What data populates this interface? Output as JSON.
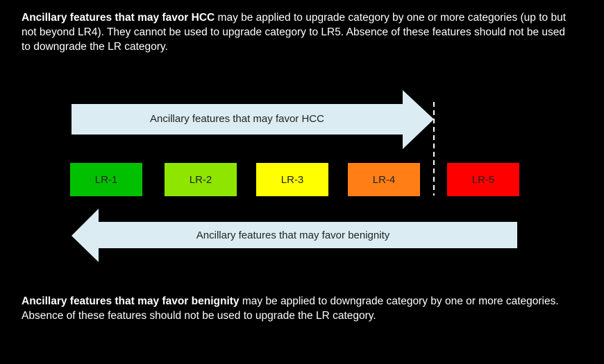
{
  "top_text": {
    "bold": "Ancillary features that may favor HCC",
    "rest": " may be applied to upgrade category by one or more categories (up to but not beyond LR4). They cannot be used to upgrade category to LR5. Absence of these features should not be used to downgrade the LR category."
  },
  "bottom_text": {
    "bold": "Ancillary features that may favor benignity",
    "rest": " may be applied to downgrade category by one or more categories. Absence of these features should not be used to upgrade the LR category."
  },
  "arrows": {
    "hcc_label": "Ancillary features that may favor HCC",
    "benign_label": "Ancillary features that may favor benignity",
    "fill_color": "#dbedf3"
  },
  "categories": [
    {
      "label": "LR-1",
      "color": "#00c000"
    },
    {
      "label": "LR-2",
      "color": "#8ee600"
    },
    {
      "label": "LR-3",
      "color": "#ffff00"
    },
    {
      "label": "LR-4",
      "color": "#ff7f16"
    },
    {
      "label": "LR-5",
      "color": "#ff0000"
    }
  ]
}
